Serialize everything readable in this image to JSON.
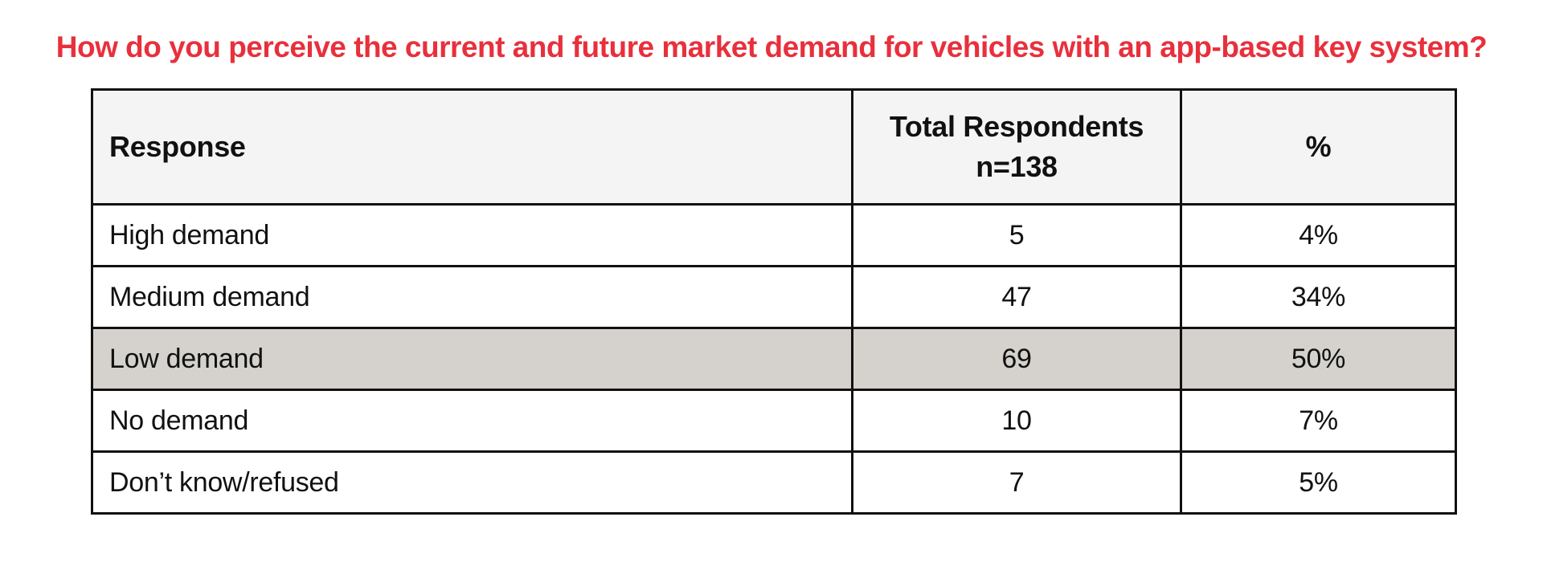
{
  "chart_data": {
    "type": "table",
    "title": "How do you perceive the current and future market demand for vehicles with an app-based key system?",
    "columns": [
      "Response",
      "Total Respondents",
      "%"
    ],
    "column_sublabel": "n=138",
    "rows": [
      {
        "response": "High demand",
        "count": "5",
        "percent": "4%"
      },
      {
        "response": "Medium demand",
        "count": "47",
        "percent": "34%"
      },
      {
        "response": "Low demand",
        "count": "69",
        "percent": "50%",
        "highlighted": true
      },
      {
        "response": "No demand",
        "count": "10",
        "percent": "7%"
      },
      {
        "response": "Don’t know/refused",
        "count": "7",
        "percent": "5%"
      }
    ]
  },
  "colors": {
    "title": "#e8303c",
    "header_background": "#f4f4f4",
    "highlight_row_background": "#d5d1cc",
    "row_background": "#ffffff",
    "border": "#111111"
  }
}
